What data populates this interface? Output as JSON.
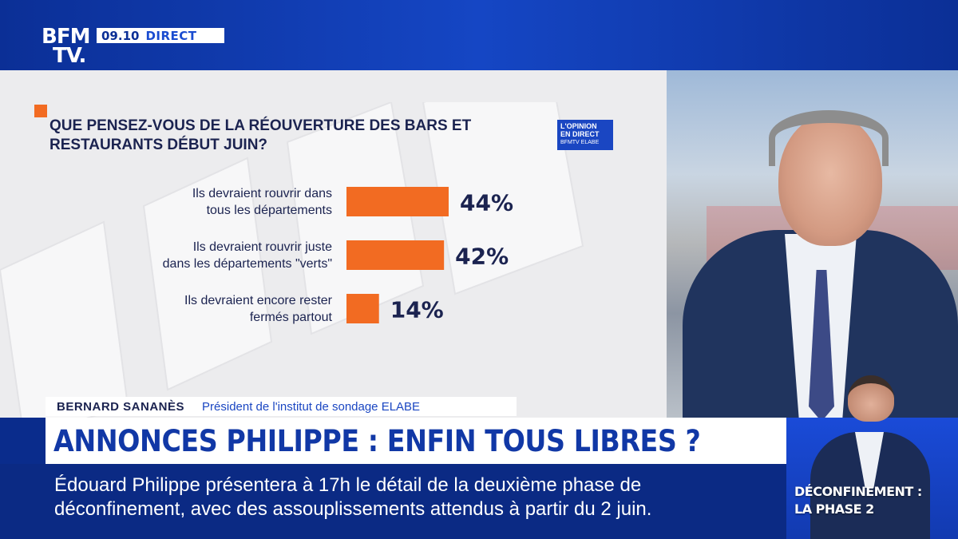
{
  "channel": {
    "logo_line1": "BFM",
    "logo_line2": "TV.",
    "time": "09.10",
    "live_label": "DIRECT"
  },
  "badge": {
    "line1": "L'OPINION",
    "line2": "EN DIRECT",
    "line3": "BFMTV ELABE"
  },
  "chart_data": {
    "type": "bar",
    "orientation": "horizontal",
    "title": "QUE PENSEZ-VOUS DE LA RÉOUVERTURE DES BARS ET RESTAURANTS DÉBUT JUIN?",
    "categories": [
      [
        "Ils devraient rouvrir dans",
        "tous les départements"
      ],
      [
        "Ils devraient rouvrir juste",
        "dans les départements \"verts\""
      ],
      [
        "Ils devraient encore rester",
        "fermés partout"
      ]
    ],
    "values": [
      44,
      42,
      14
    ],
    "value_labels": [
      "44%",
      "42%",
      "14%"
    ],
    "xlim": [
      0,
      44
    ],
    "bar_color": "#f26b22",
    "grid": false,
    "legend": "none"
  },
  "strap": {
    "name": "BERNARD SANANÈS",
    "role": "Président de l'institut de sondage ELABE"
  },
  "headline": "ANNONCES PHILIPPE : ENFIN TOUS LIBRES ?",
  "ticker": {
    "line1": "Édouard Philippe présentera à 17h le détail de la deuxième phase de",
    "line2": "déconfinement, avec des assouplissements attendus à partir du 2 juin."
  },
  "inset": {
    "line1": "DÉCONFINEMENT :",
    "line2": "LA PHASE 2"
  },
  "colors": {
    "accent": "#f26b22",
    "brand_blue": "#1138a6",
    "text_dark": "#1b2350"
  }
}
